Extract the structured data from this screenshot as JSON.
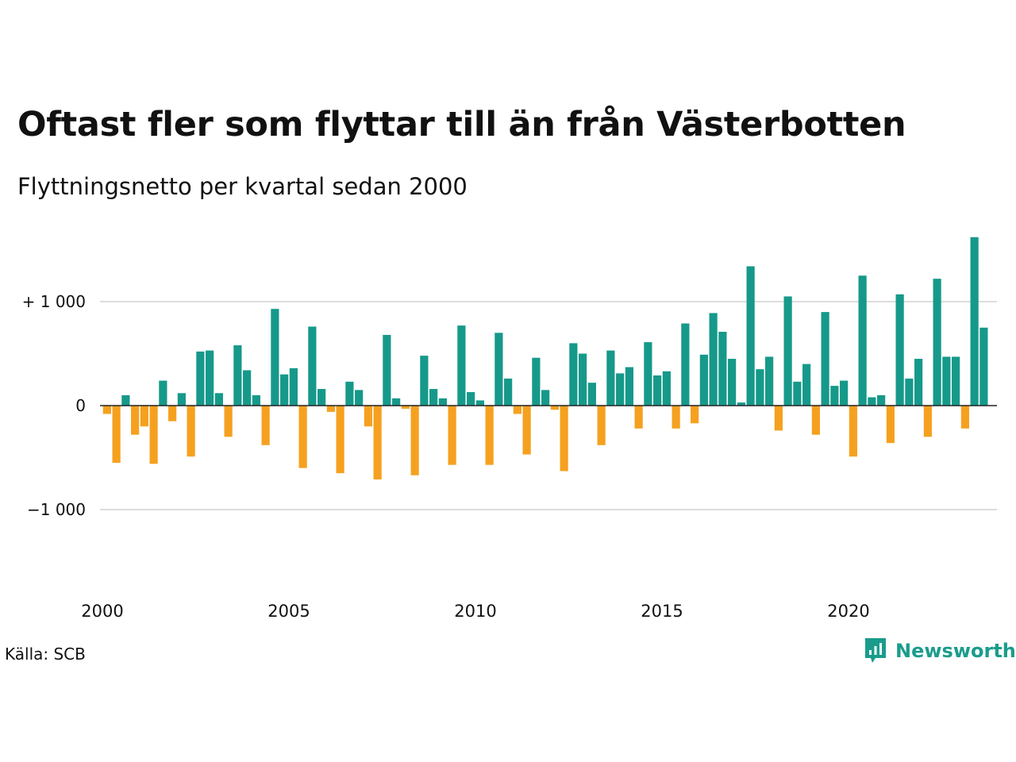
{
  "header": {
    "title": "Oftast fler som flyttar till än från Västerbotten",
    "subtitle": "Flyttningsnetto per kvartal sedan 2000"
  },
  "footer": {
    "source": "Källa: SCB",
    "brand": "Newsworthy",
    "brand_icon": "bar-chart-icon"
  },
  "colors": {
    "positive": "#16998a",
    "negative": "#f5a11f",
    "grid": "#dddddd",
    "zero_line": "#222222",
    "brand": "#1a9c8c"
  },
  "chart_data": {
    "type": "bar",
    "x_start": "2000-Q1",
    "interval": "quarter",
    "x_ticks": [
      "2000",
      "2005",
      "2010",
      "2015",
      "2020"
    ],
    "y_ticks": [
      {
        "value": 1000,
        "label": "+ 1 000"
      },
      {
        "value": 0,
        "label": "0"
      },
      {
        "value": -1000,
        "label": "−1 000"
      }
    ],
    "ylim": [
      -1750,
      1650
    ],
    "grid": true,
    "values": [
      -80,
      -550,
      100,
      -280,
      -200,
      -560,
      240,
      -150,
      120,
      -490,
      520,
      530,
      120,
      -300,
      580,
      340,
      100,
      -380,
      930,
      300,
      360,
      -600,
      760,
      160,
      -60,
      -650,
      230,
      150,
      -200,
      -710,
      680,
      70,
      -30,
      -670,
      480,
      160,
      70,
      -570,
      770,
      130,
      50,
      -570,
      700,
      260,
      -80,
      -470,
      460,
      150,
      -40,
      -630,
      600,
      500,
      220,
      -380,
      530,
      310,
      370,
      -220,
      610,
      290,
      330,
      -220,
      790,
      -170,
      490,
      890,
      710,
      450,
      30,
      1340,
      350,
      470,
      -240,
      1050,
      230,
      400,
      -280,
      900,
      190,
      240,
      -490,
      1250,
      80,
      100,
      -360,
      1070,
      260,
      450,
      -300,
      1220,
      470,
      470,
      -220,
      1620,
      750
    ]
  }
}
